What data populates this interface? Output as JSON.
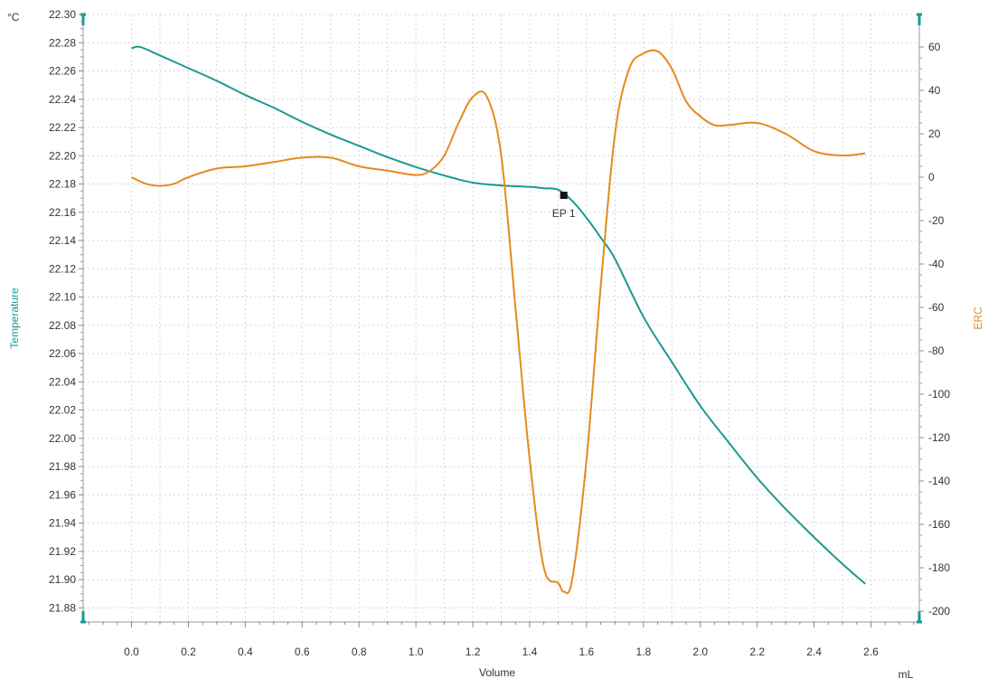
{
  "chart_data": {
    "type": "line",
    "title": "",
    "xlabel": "Volume",
    "x_unit": "mL",
    "xlim": [
      -0.17,
      2.77
    ],
    "x_ticks": [
      "0.0",
      "0.2",
      "0.4",
      "0.6",
      "0.8",
      "1.0",
      "1.2",
      "1.4",
      "1.6",
      "1.8",
      "2.0",
      "2.2",
      "2.4",
      "2.6"
    ],
    "y_left": {
      "label": "Temperature",
      "unit": "°C",
      "color": "#1a9a92",
      "lim": [
        21.87,
        22.3
      ],
      "ticks": [
        "22.30",
        "22.28",
        "22.26",
        "22.24",
        "22.22",
        "22.20",
        "22.18",
        "22.16",
        "22.14",
        "22.12",
        "22.10",
        "22.08",
        "22.06",
        "22.04",
        "22.02",
        "22.00",
        "21.98",
        "21.96",
        "21.94",
        "21.92",
        "21.90",
        "21.88"
      ]
    },
    "y_right": {
      "label": "ERC",
      "color": "#e68a1c",
      "lim": [
        -205,
        75
      ],
      "ticks": [
        "60",
        "40",
        "20",
        "0",
        "-20",
        "-40",
        "-60",
        "-80",
        "-100",
        "-120",
        "-140",
        "-160",
        "-180",
        "-200"
      ]
    },
    "grid": true,
    "series": [
      {
        "name": "Temperature",
        "axis": "left",
        "color": "#1a9a92",
        "x": [
          0.0,
          0.03,
          0.1,
          0.2,
          0.3,
          0.4,
          0.5,
          0.6,
          0.7,
          0.8,
          0.9,
          1.0,
          1.1,
          1.2,
          1.3,
          1.4,
          1.45,
          1.5,
          1.55,
          1.6,
          1.65,
          1.7,
          1.8,
          1.9,
          2.0,
          2.1,
          2.2,
          2.3,
          2.4,
          2.5,
          2.58
        ],
        "y": [
          22.276,
          22.277,
          22.271,
          22.262,
          22.253,
          22.243,
          22.234,
          22.224,
          22.215,
          22.207,
          22.199,
          22.192,
          22.186,
          22.181,
          22.179,
          22.178,
          22.177,
          22.176,
          22.168,
          22.156,
          22.142,
          22.127,
          22.086,
          22.054,
          22.023,
          21.997,
          21.972,
          21.95,
          21.93,
          21.911,
          21.897
        ]
      },
      {
        "name": "ERC",
        "axis": "right",
        "color": "#e68a1c",
        "x": [
          0.0,
          0.05,
          0.1,
          0.15,
          0.2,
          0.3,
          0.4,
          0.5,
          0.6,
          0.7,
          0.8,
          0.9,
          1.0,
          1.05,
          1.1,
          1.15,
          1.2,
          1.25,
          1.3,
          1.35,
          1.4,
          1.45,
          1.5,
          1.52,
          1.55,
          1.6,
          1.65,
          1.7,
          1.75,
          1.8,
          1.85,
          1.9,
          1.95,
          2.0,
          2.05,
          2.1,
          2.2,
          2.3,
          2.4,
          2.5,
          2.58
        ],
        "y": [
          0,
          -3,
          -4,
          -3,
          0,
          4,
          5,
          7,
          9,
          9,
          5,
          3,
          1,
          3,
          10,
          25,
          37,
          37,
          10,
          -60,
          -130,
          -180,
          -187,
          -191,
          -185,
          -130,
          -50,
          20,
          50,
          57,
          58,
          50,
          35,
          28,
          24,
          24,
          25,
          20,
          12,
          10,
          11
        ]
      }
    ],
    "annotations": [
      {
        "label": "EP 1",
        "x": 1.52,
        "y_left": 22.172
      }
    ]
  }
}
